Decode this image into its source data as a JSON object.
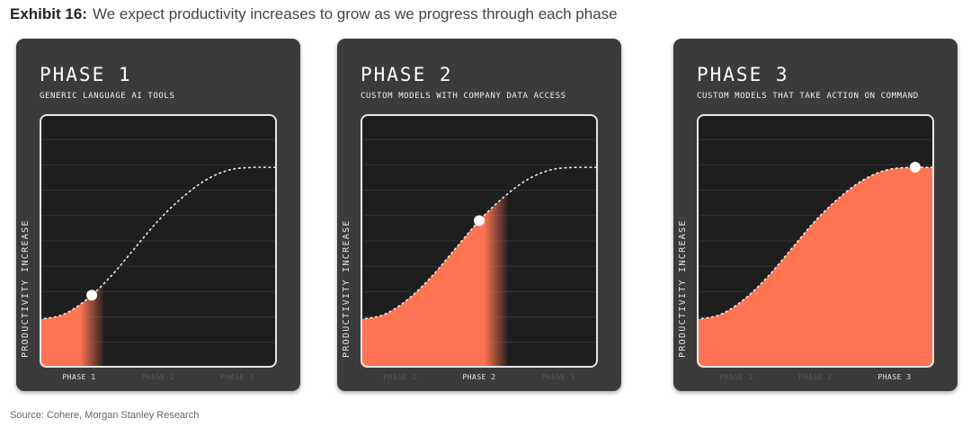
{
  "exhibit": {
    "label": "Exhibit 16:",
    "title": "We expect productivity increases to grow as we progress through each phase"
  },
  "source": "Source: Cohere, Morgan Stanley Research",
  "colors": {
    "card_background": "#3b3b3b",
    "plot_background": "#1e1e1e",
    "fill": "#ff7452",
    "curve": "#f0f0f0",
    "marker": "#ffffff"
  },
  "chart_data": [
    {
      "type": "area",
      "title": "PHASE 1",
      "subtitle": "GENERIC LANGUAGE AI TOOLS",
      "ylabel": "PRODUCTIVITY INCREASE",
      "categories": [
        "PHASE 1",
        "PHASE 2",
        "PHASE 3"
      ],
      "active_category": 0,
      "x": [
        0,
        0.1,
        0.2,
        0.3,
        0.4,
        0.5,
        0.6,
        0.7,
        0.8,
        0.9,
        1.0
      ],
      "y": [
        0.19,
        0.21,
        0.27,
        0.36,
        0.47,
        0.58,
        0.67,
        0.74,
        0.78,
        0.79,
        0.79
      ],
      "fill_until": 0.27,
      "marker_x": 0.22,
      "grid": true,
      "ylim": [
        0,
        1
      ],
      "xlim": [
        0,
        1
      ]
    },
    {
      "type": "area",
      "title": "PHASE 2",
      "subtitle": "CUSTOM MODELS WITH COMPANY DATA ACCESS",
      "ylabel": "PRODUCTIVITY INCREASE",
      "categories": [
        "PHASE 1",
        "PHASE 2",
        "PHASE 3"
      ],
      "active_category": 1,
      "x": [
        0,
        0.1,
        0.2,
        0.3,
        0.4,
        0.5,
        0.6,
        0.7,
        0.8,
        0.9,
        1.0
      ],
      "y": [
        0.19,
        0.21,
        0.27,
        0.36,
        0.47,
        0.58,
        0.67,
        0.74,
        0.78,
        0.79,
        0.79
      ],
      "fill_until": 0.62,
      "marker_x": 0.5,
      "grid": true,
      "ylim": [
        0,
        1
      ],
      "xlim": [
        0,
        1
      ]
    },
    {
      "type": "area",
      "title": "PHASE 3",
      "subtitle": "CUSTOM MODELS THAT TAKE ACTION ON COMMAND",
      "ylabel": "PRODUCTIVITY INCREASE",
      "categories": [
        "PHASE 1",
        "PHASE 2",
        "PHASE 3"
      ],
      "active_category": 2,
      "x": [
        0,
        0.1,
        0.2,
        0.3,
        0.4,
        0.5,
        0.6,
        0.7,
        0.8,
        0.9,
        1.0
      ],
      "y": [
        0.19,
        0.21,
        0.27,
        0.36,
        0.47,
        0.58,
        0.67,
        0.74,
        0.78,
        0.79,
        0.79
      ],
      "fill_until": 1.0,
      "marker_x": 0.92,
      "grid": true,
      "ylim": [
        0,
        1
      ],
      "xlim": [
        0,
        1
      ]
    }
  ]
}
